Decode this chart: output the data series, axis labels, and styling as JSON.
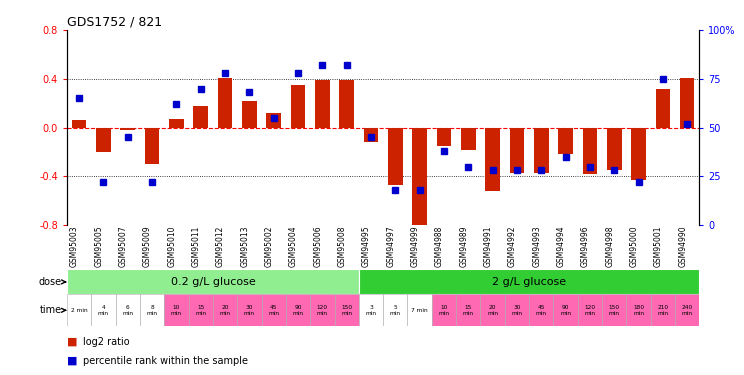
{
  "title": "GDS1752 / 821",
  "samples": [
    "GSM95003",
    "GSM95005",
    "GSM95007",
    "GSM95009",
    "GSM95010",
    "GSM95011",
    "GSM95012",
    "GSM95013",
    "GSM95002",
    "GSM95004",
    "GSM95006",
    "GSM95008",
    "GSM94995",
    "GSM94997",
    "GSM94999",
    "GSM94988",
    "GSM94989",
    "GSM94991",
    "GSM94992",
    "GSM94993",
    "GSM94994",
    "GSM94996",
    "GSM94998",
    "GSM95000",
    "GSM95001",
    "GSM94990"
  ],
  "log2_ratio": [
    0.06,
    -0.2,
    -0.02,
    -0.3,
    0.07,
    0.18,
    0.41,
    0.22,
    0.12,
    0.35,
    0.39,
    0.39,
    -0.12,
    -0.47,
    -0.85,
    -0.15,
    -0.18,
    -0.52,
    -0.37,
    -0.37,
    -0.22,
    -0.38,
    -0.35,
    -0.43,
    0.32,
    0.41
  ],
  "percentile": [
    65,
    22,
    45,
    22,
    62,
    70,
    78,
    68,
    55,
    78,
    82,
    82,
    45,
    18,
    18,
    38,
    30,
    28,
    28,
    28,
    35,
    30,
    28,
    22,
    75,
    52
  ],
  "dose_groups": [
    {
      "label": "0.2 g/L glucose",
      "start": 0,
      "end": 12,
      "color": "#90EE90"
    },
    {
      "label": "2 g/L glucose",
      "start": 12,
      "end": 26,
      "color": "#32CD32"
    }
  ],
  "time_labels": [
    "2 min",
    "4\nmin",
    "6\nmin",
    "8\nmin",
    "10\nmin",
    "15\nmin",
    "20\nmin",
    "30\nmin",
    "45\nmin",
    "90\nmin",
    "120\nmin",
    "150\nmin",
    "3\nmin",
    "5\nmin",
    "7 min",
    "10\nmin",
    "15\nmin",
    "20\nmin",
    "30\nmin",
    "45\nmin",
    "90\nmin",
    "120\nmin",
    "150\nmin",
    "180\nmin",
    "210\nmin",
    "240\nmin"
  ],
  "time_colors": [
    "#ffffff",
    "#ffffff",
    "#ffffff",
    "#ffffff",
    "#FF69B4",
    "#FF69B4",
    "#FF69B4",
    "#FF69B4",
    "#FF69B4",
    "#FF69B4",
    "#FF69B4",
    "#FF69B4",
    "#ffffff",
    "#ffffff",
    "#ffffff",
    "#FF69B4",
    "#FF69B4",
    "#FF69B4",
    "#FF69B4",
    "#FF69B4",
    "#FF69B4",
    "#FF69B4",
    "#FF69B4",
    "#FF69B4",
    "#FF69B4",
    "#FF69B4"
  ],
  "bar_color": "#CC2200",
  "dot_color": "#0000CC",
  "ylim_left": [
    -0.8,
    0.8
  ],
  "ylim_right": [
    0,
    100
  ],
  "yticks_left": [
    -0.8,
    -0.4,
    0.0,
    0.4,
    0.8
  ],
  "yticks_right": [
    0,
    25,
    50,
    75,
    100
  ],
  "ytick_labels_right": [
    "0",
    "25",
    "50",
    "75",
    "100%"
  ],
  "hlines_dotted": [
    -0.4,
    0.4
  ],
  "background_color": "#ffffff"
}
